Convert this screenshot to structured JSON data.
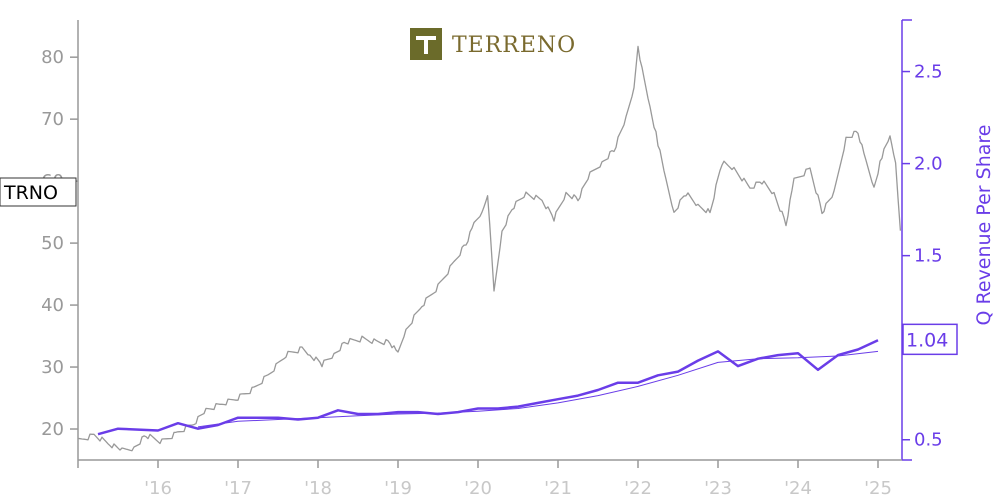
{
  "logo": {
    "text": "TERRENO"
  },
  "chart_data": {
    "type": "line",
    "title": "",
    "xlabel": "",
    "ylabel": "",
    "y2label": "Q Revenue Per Share",
    "x_tick_labels": [
      "'16",
      "'17",
      "'18",
      "'19",
      "'20",
      "'21",
      "'22",
      "'23",
      "'24",
      "'25"
    ],
    "x_range": [
      2015.0,
      2025.3
    ],
    "y_left": {
      "ticks": [
        20,
        30,
        40,
        50,
        60,
        70,
        80
      ],
      "range": [
        15,
        86
      ]
    },
    "y_right": {
      "ticks": [
        0.5,
        1.0,
        1.5,
        2.0,
        2.5
      ],
      "tick_labels": [
        "0.5",
        "1.0",
        "1.5",
        "2.0",
        "2.5"
      ],
      "range": [
        0.39,
        2.78
      ]
    },
    "series": [
      {
        "name": "TRNO",
        "axis": "left",
        "color": "#999999",
        "points": [
          [
            2015.0,
            18.0
          ],
          [
            2015.2,
            19.0
          ],
          [
            2015.4,
            17.5
          ],
          [
            2015.55,
            16.5
          ],
          [
            2015.7,
            17.0
          ],
          [
            2015.85,
            19.0
          ],
          [
            2016.05,
            18.0
          ],
          [
            2016.25,
            19.5
          ],
          [
            2016.45,
            21.0
          ],
          [
            2016.6,
            23.0
          ],
          [
            2016.8,
            24.0
          ],
          [
            2017.0,
            25.0
          ],
          [
            2017.2,
            26.5
          ],
          [
            2017.4,
            29.0
          ],
          [
            2017.6,
            32.0
          ],
          [
            2017.8,
            33.0
          ],
          [
            2017.9,
            32.0
          ],
          [
            2018.05,
            30.5
          ],
          [
            2018.2,
            32.0
          ],
          [
            2018.35,
            34.0
          ],
          [
            2018.55,
            34.5
          ],
          [
            2018.75,
            34.0
          ],
          [
            2018.9,
            34.0
          ],
          [
            2019.0,
            32.0
          ],
          [
            2019.1,
            36.0
          ],
          [
            2019.3,
            40.0
          ],
          [
            2019.5,
            43.0
          ],
          [
            2019.7,
            47.0
          ],
          [
            2019.85,
            50.0
          ],
          [
            2019.95,
            53.0
          ],
          [
            2020.05,
            55.0
          ],
          [
            2020.12,
            58.0
          ],
          [
            2020.2,
            42.0
          ],
          [
            2020.3,
            52.0
          ],
          [
            2020.45,
            56.0
          ],
          [
            2020.6,
            58.0
          ],
          [
            2020.8,
            57.0
          ],
          [
            2020.95,
            54.0
          ],
          [
            2021.1,
            58.0
          ],
          [
            2021.25,
            57.0
          ],
          [
            2021.4,
            61.0
          ],
          [
            2021.55,
            63.0
          ],
          [
            2021.7,
            65.0
          ],
          [
            2021.85,
            70.0
          ],
          [
            2021.95,
            75.0
          ],
          [
            2022.0,
            82.0
          ],
          [
            2022.05,
            78.0
          ],
          [
            2022.15,
            72.0
          ],
          [
            2022.25,
            66.0
          ],
          [
            2022.35,
            60.0
          ],
          [
            2022.45,
            55.0
          ],
          [
            2022.6,
            58.0
          ],
          [
            2022.75,
            56.0
          ],
          [
            2022.9,
            55.0
          ],
          [
            2023.05,
            63.0
          ],
          [
            2023.2,
            62.0
          ],
          [
            2023.4,
            59.0
          ],
          [
            2023.55,
            60.0
          ],
          [
            2023.7,
            58.0
          ],
          [
            2023.85,
            53.0
          ],
          [
            2023.95,
            60.0
          ],
          [
            2024.15,
            62.0
          ],
          [
            2024.3,
            55.0
          ],
          [
            2024.45,
            58.0
          ],
          [
            2024.6,
            67.0
          ],
          [
            2024.75,
            68.0
          ],
          [
            2024.85,
            63.0
          ],
          [
            2024.95,
            59.0
          ],
          [
            2025.05,
            64.0
          ],
          [
            2025.15,
            67.0
          ],
          [
            2025.22,
            63.0
          ],
          [
            2025.28,
            52.0
          ]
        ]
      },
      {
        "name": "Q Revenue Per Share",
        "axis": "right",
        "color": "#6a3de8",
        "points": [
          [
            2015.25,
            0.53
          ],
          [
            2015.5,
            0.56
          ],
          [
            2016.0,
            0.55
          ],
          [
            2016.25,
            0.59
          ],
          [
            2016.5,
            0.56
          ],
          [
            2016.75,
            0.58
          ],
          [
            2017.0,
            0.62
          ],
          [
            2017.25,
            0.62
          ],
          [
            2017.5,
            0.62
          ],
          [
            2017.75,
            0.61
          ],
          [
            2018.0,
            0.62
          ],
          [
            2018.25,
            0.66
          ],
          [
            2018.5,
            0.64
          ],
          [
            2018.75,
            0.64
          ],
          [
            2019.0,
            0.65
          ],
          [
            2019.25,
            0.65
          ],
          [
            2019.5,
            0.64
          ],
          [
            2019.75,
            0.65
          ],
          [
            2020.0,
            0.67
          ],
          [
            2020.25,
            0.67
          ],
          [
            2020.5,
            0.68
          ],
          [
            2020.75,
            0.7
          ],
          [
            2021.0,
            0.72
          ],
          [
            2021.25,
            0.74
          ],
          [
            2021.5,
            0.77
          ],
          [
            2021.75,
            0.81
          ],
          [
            2022.0,
            0.81
          ],
          [
            2022.25,
            0.85
          ],
          [
            2022.5,
            0.87
          ],
          [
            2022.75,
            0.93
          ],
          [
            2023.0,
            0.98
          ],
          [
            2023.25,
            0.9
          ],
          [
            2023.5,
            0.94
          ],
          [
            2023.75,
            0.96
          ],
          [
            2024.0,
            0.97
          ],
          [
            2024.25,
            0.88
          ],
          [
            2024.5,
            0.96
          ],
          [
            2024.75,
            0.99
          ],
          [
            2025.0,
            1.04
          ]
        ]
      },
      {
        "name": "",
        "axis": "right",
        "color": "#6a3de8",
        "thin": true,
        "points": [
          [
            2016.5,
            0.57
          ],
          [
            2017.0,
            0.6
          ],
          [
            2017.5,
            0.61
          ],
          [
            2018.0,
            0.62
          ],
          [
            2018.5,
            0.63
          ],
          [
            2019.0,
            0.64
          ],
          [
            2019.5,
            0.645
          ],
          [
            2020.0,
            0.655
          ],
          [
            2020.5,
            0.67
          ],
          [
            2021.0,
            0.7
          ],
          [
            2021.5,
            0.74
          ],
          [
            2022.0,
            0.79
          ],
          [
            2022.5,
            0.85
          ],
          [
            2023.0,
            0.92
          ],
          [
            2023.5,
            0.94
          ],
          [
            2024.0,
            0.945
          ],
          [
            2024.5,
            0.955
          ],
          [
            2025.0,
            0.98
          ]
        ]
      }
    ],
    "last_value_labels": {
      "left": "TRNO",
      "right": "1.04"
    },
    "grid": false,
    "legend": "none"
  },
  "colors": {
    "price": "#999999",
    "revenue": "#6a3de8",
    "axis_left": "#999999",
    "axis_right": "#6a3de8"
  }
}
